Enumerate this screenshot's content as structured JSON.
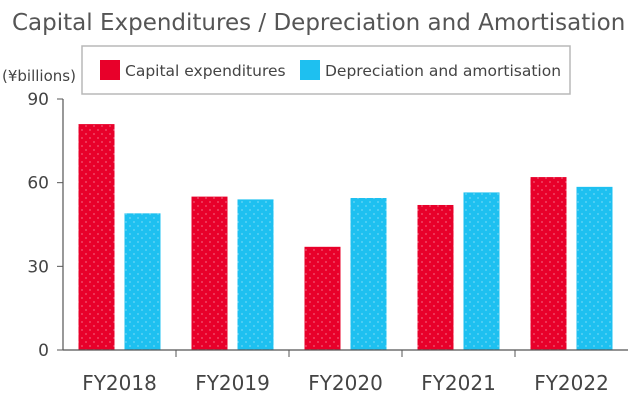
{
  "chart_data": {
    "type": "bar",
    "title": "Capital Expenditures / Depreciation and Amortisation",
    "ylabel": "(¥billions)",
    "xlabel": "",
    "categories": [
      "FY2018",
      "FY2019",
      "FY2020",
      "FY2021",
      "FY2022"
    ],
    "series": [
      {
        "name": "Capital expenditures",
        "color": "#e8002a",
        "values": [
          81,
          55,
          37,
          52,
          62
        ]
      },
      {
        "name": "Depreciation and amortisation",
        "color": "#1ec0f0",
        "values": [
          49,
          54,
          54.5,
          56.5,
          58.5
        ]
      }
    ],
    "ylim": [
      0,
      90
    ],
    "yticks": [
      0,
      30,
      60,
      90
    ],
    "grid": false,
    "legend": "top-right"
  }
}
